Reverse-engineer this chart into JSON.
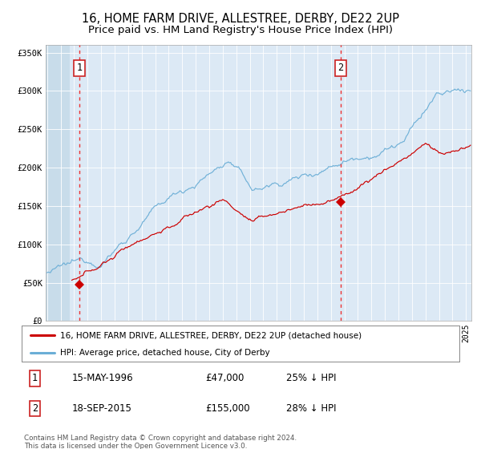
{
  "title": "16, HOME FARM DRIVE, ALLESTREE, DERBY, DE22 2UP",
  "subtitle": "Price paid vs. HM Land Registry's House Price Index (HPI)",
  "title_fontsize": 10.5,
  "subtitle_fontsize": 9.5,
  "bg_color": "#dce9f5",
  "ylim": [
    0,
    360000
  ],
  "yticks": [
    0,
    50000,
    100000,
    150000,
    200000,
    250000,
    300000,
    350000
  ],
  "ytick_labels": [
    "£0",
    "£50K",
    "£100K",
    "£150K",
    "£200K",
    "£250K",
    "£300K",
    "£350K"
  ],
  "legend_entry1": "16, HOME FARM DRIVE, ALLESTREE, DERBY, DE22 2UP (detached house)",
  "legend_entry2": "HPI: Average price, detached house, City of Derby",
  "annotation1_date": "15-MAY-1996",
  "annotation1_price": "£47,000",
  "annotation1_pct": "25% ↓ HPI",
  "annotation2_date": "18-SEP-2015",
  "annotation2_price": "£155,000",
  "annotation2_pct": "28% ↓ HPI",
  "footnote": "Contains HM Land Registry data © Crown copyright and database right 2024.\nThis data is licensed under the Open Government Licence v3.0.",
  "point1_x": 1996.38,
  "point1_y": 47000,
  "point2_x": 2015.72,
  "point2_y": 155000,
  "hpi_color": "#6baed6",
  "price_color": "#cc0000",
  "vline_color": "#ee3333",
  "marker_color": "#cc0000",
  "xmin": 1993.9,
  "xmax": 2025.4,
  "hatch_end": 1995.7
}
